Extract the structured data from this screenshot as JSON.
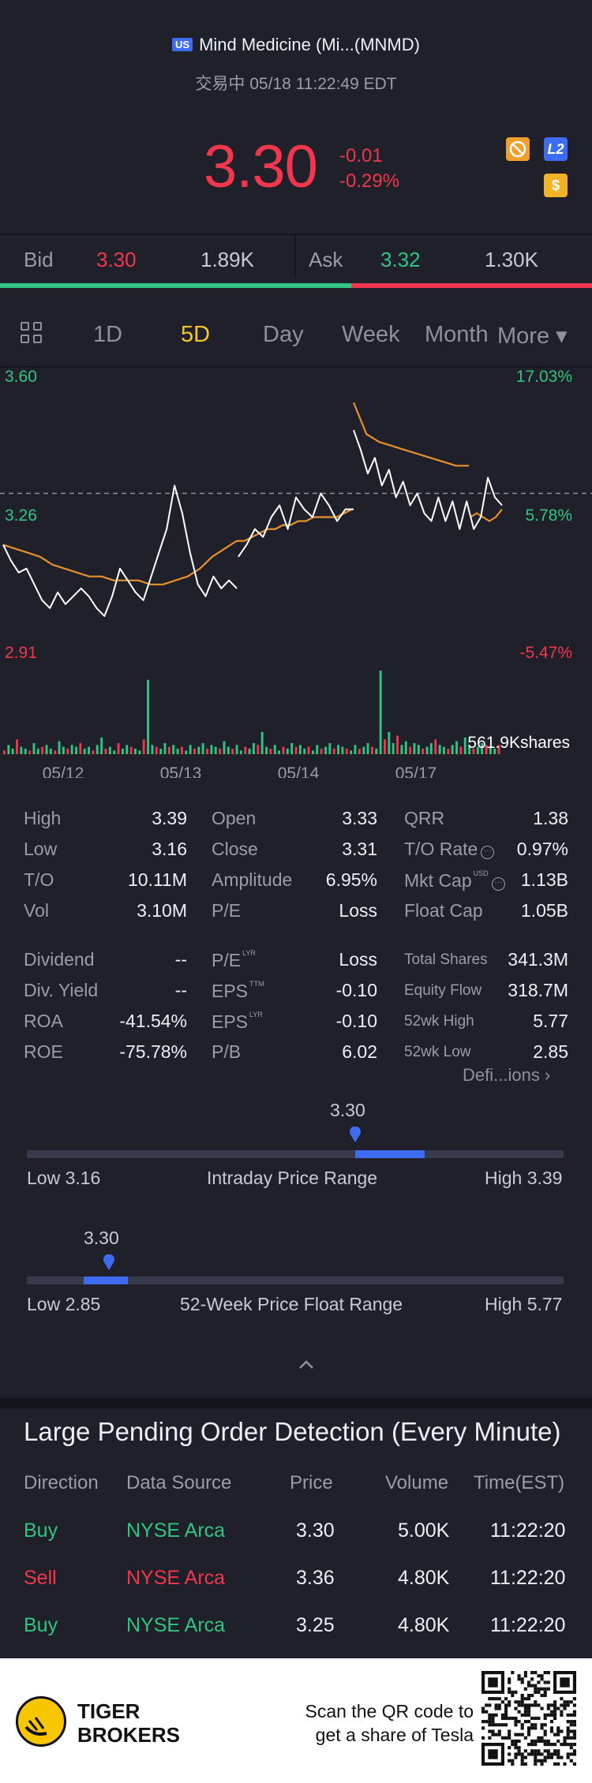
{
  "header": {
    "market_badge": "US",
    "title": "Mind Medicine (Mi...(MNMD)",
    "status": "交易中 05/18 11:22:49 EDT"
  },
  "quote": {
    "price": "3.30",
    "change": "-0.01",
    "change_pct": "-0.29%"
  },
  "badges": {
    "l2": "L2",
    "usd": "$"
  },
  "bid_ask": {
    "bid_label": "Bid",
    "bid_price": "3.30",
    "bid_size": "1.89K",
    "ask_label": "Ask",
    "ask_price": "3.32",
    "ask_size": "1.30K"
  },
  "tabs": [
    "1D",
    "5D",
    "Day",
    "Week",
    "Month",
    "More ▾"
  ],
  "active_tab": "5D",
  "chart_data": {
    "type": "line",
    "y_left_ticks": [
      "3.60",
      "3.26",
      "2.91"
    ],
    "y_right_ticks": [
      "17.03%",
      "5.78%",
      "-5.47%"
    ],
    "x_ticks": [
      "05/12",
      "05/13",
      "05/14",
      "05/17"
    ],
    "ylim": [
      2.91,
      3.6
    ],
    "prev_close": 3.31,
    "volume_label": "561.9Kshares",
    "series": [
      {
        "values": [
          3.18,
          3.14,
          3.11,
          3.12,
          3.08,
          3.04,
          3.02,
          3.06,
          3.03,
          3.05,
          3.07,
          3.05,
          3.02,
          3.0,
          3.05,
          3.12,
          3.09,
          3.06,
          3.04,
          3.1,
          3.16,
          3.22,
          3.33,
          3.26,
          3.16,
          3.08,
          3.05,
          3.1,
          3.07,
          3.09,
          3.07
        ]
      },
      {
        "values": [
          3.15,
          3.18,
          3.22,
          3.2,
          3.25,
          3.28,
          3.22,
          3.3,
          3.27,
          3.25,
          3.31,
          3.28,
          3.24,
          3.27,
          3.27
        ]
      },
      {
        "values": [
          3.47,
          3.42,
          3.36,
          3.4,
          3.33,
          3.37,
          3.3,
          3.34,
          3.28,
          3.31,
          3.26,
          3.24,
          3.3,
          3.24,
          3.29,
          3.22,
          3.29,
          3.22,
          3.25,
          3.35,
          3.3,
          3.28
        ]
      }
    ],
    "avg_series": [
      {
        "values": [
          3.18,
          3.17,
          3.16,
          3.15,
          3.13,
          3.12,
          3.11,
          3.1,
          3.1,
          3.09,
          3.09,
          3.09,
          3.08,
          3.08,
          3.09,
          3.1,
          3.12,
          3.15,
          3.17,
          3.19
        ]
      },
      {
        "values": [
          3.19,
          3.19,
          3.2,
          3.21,
          3.22,
          3.22,
          3.23,
          3.23,
          3.24,
          3.24,
          3.25,
          3.25,
          3.25,
          3.25,
          3.26,
          3.27
        ]
      },
      {
        "values": [
          3.54,
          3.46,
          3.44,
          3.43,
          3.42,
          3.41,
          3.4,
          3.39,
          3.38,
          3.38
        ]
      },
      {
        "values": [
          3.25,
          3.26,
          3.25,
          3.24,
          3.25,
          3.27
        ]
      }
    ],
    "volumes": [
      2,
      5,
      3,
      8,
      4,
      3,
      2,
      6,
      3,
      4,
      5,
      3,
      2,
      7,
      4,
      3,
      5,
      4,
      6,
      3,
      4,
      2,
      5,
      9,
      3,
      4,
      2,
      6,
      3,
      5,
      4,
      3,
      2,
      8,
      40,
      5,
      4,
      3,
      6,
      4,
      5,
      3,
      4,
      2,
      5,
      3,
      4,
      6,
      3,
      5,
      4,
      3,
      7,
      4,
      3,
      5,
      2,
      4,
      3,
      6,
      5,
      12,
      4,
      3,
      5,
      2,
      4,
      3,
      6,
      4,
      5,
      3,
      4,
      2,
      5,
      3,
      4,
      6,
      3,
      5,
      4,
      3,
      2,
      5,
      3,
      4,
      6,
      4,
      3,
      45,
      8,
      12,
      6,
      10,
      5,
      7,
      4,
      6,
      5,
      3,
      4,
      6,
      8,
      5,
      4,
      3,
      5,
      7,
      4,
      9,
      5,
      3,
      4,
      6,
      5,
      4,
      3,
      5
    ]
  },
  "stats": {
    "col1": [
      {
        "label": "High",
        "value": "3.39"
      },
      {
        "label": "Low",
        "value": "3.16"
      },
      {
        "label": "T/O",
        "value": "10.11M"
      },
      {
        "label": "Vol",
        "value": "3.10M"
      },
      {
        "label": "Dividend",
        "value": "--"
      },
      {
        "label": "Div. Yield",
        "value": "--"
      },
      {
        "label": "ROA",
        "value": "-41.54%"
      },
      {
        "label": "ROE",
        "value": "-75.78%"
      }
    ],
    "col2": [
      {
        "label": "Open",
        "value": "3.33"
      },
      {
        "label": "Close",
        "value": "3.31"
      },
      {
        "label": "Amplitude",
        "value": "6.95%"
      },
      {
        "label": "P/E",
        "value": "Loss"
      },
      {
        "label": "P/E",
        "sup": "LYR",
        "value": "Loss"
      },
      {
        "label": "EPS",
        "sup": "TTM",
        "value": "-0.10"
      },
      {
        "label": "EPS",
        "sup": "LYR",
        "value": "-0.10"
      },
      {
        "label": "P/B",
        "value": "6.02"
      }
    ],
    "col3": [
      {
        "label": "QRR",
        "value": "1.38"
      },
      {
        "label": "T/O Rate",
        "value": "0.97%"
      },
      {
        "label": "Mkt Cap",
        "sup": "USD",
        "value": "1.13B"
      },
      {
        "label": "Float Cap",
        "value": "1.05B"
      },
      {
        "label": "Total Shares",
        "value": "341.3M"
      },
      {
        "label": "Equity Flow",
        "value": "318.7M"
      },
      {
        "label": "52wk High",
        "value": "5.77"
      },
      {
        "label": "52wk Low",
        "value": "2.85"
      }
    ],
    "definitions_link": "Defi...ions"
  },
  "intraday_range": {
    "current": "3.30",
    "low": "Low 3.16",
    "high": "High 3.39",
    "label": "Intraday Price Range",
    "position": 0.62
  },
  "week52_range": {
    "current": "3.30",
    "low": "Low 2.85",
    "high": "High 5.77",
    "label": "52-Week Price Float Range",
    "position": 0.154
  },
  "pending_orders": {
    "title": "Large Pending Order Detection (Every Minute)",
    "headers": [
      "Direction",
      "Data Source",
      "Price",
      "Volume",
      "Time(EST)"
    ],
    "rows": [
      {
        "direction": "Buy",
        "source": "NYSE Arca",
        "price": "3.30",
        "volume": "5.00K",
        "time": "11:22:20",
        "side": "buy"
      },
      {
        "direction": "Sell",
        "source": "NYSE Arca",
        "price": "3.36",
        "volume": "4.80K",
        "time": "11:22:20",
        "side": "sell"
      },
      {
        "direction": "Buy",
        "source": "NYSE Arca",
        "price": "3.25",
        "volume": "4.80K",
        "time": "11:22:20",
        "side": "buy"
      }
    ]
  },
  "footer": {
    "brand_line1": "TIGER",
    "brand_line2": "BROKERS",
    "qr_line1": "Scan the QR code to",
    "qr_line2": "get a share of Tesla"
  },
  "colors": {
    "up": "#30c583",
    "down": "#f2364d",
    "accent": "#f4c82a",
    "brand_blue": "#3d6cf0",
    "avg_line": "#e8912e"
  }
}
